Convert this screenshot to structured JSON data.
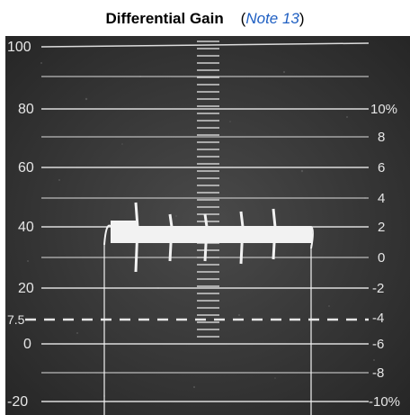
{
  "title": {
    "text": "Differential Gain",
    "paren_open": "(",
    "note_link": "Note 13",
    "paren_close": ")"
  },
  "scope": {
    "left_scale": [
      "100",
      "80",
      "60",
      "40",
      "20",
      "7.5",
      "0",
      "-20"
    ],
    "right_scale": [
      "10%",
      "8",
      "6",
      "4",
      "2",
      "0",
      "-2",
      "-4",
      "-6",
      "-8",
      "-10%"
    ],
    "colors": {
      "screen": "#3f3f3f",
      "graticule": "#dcdcdc",
      "text": "#e6e6e6",
      "trace": "#f2f2f2",
      "note_link": "#1f5fc2"
    }
  }
}
